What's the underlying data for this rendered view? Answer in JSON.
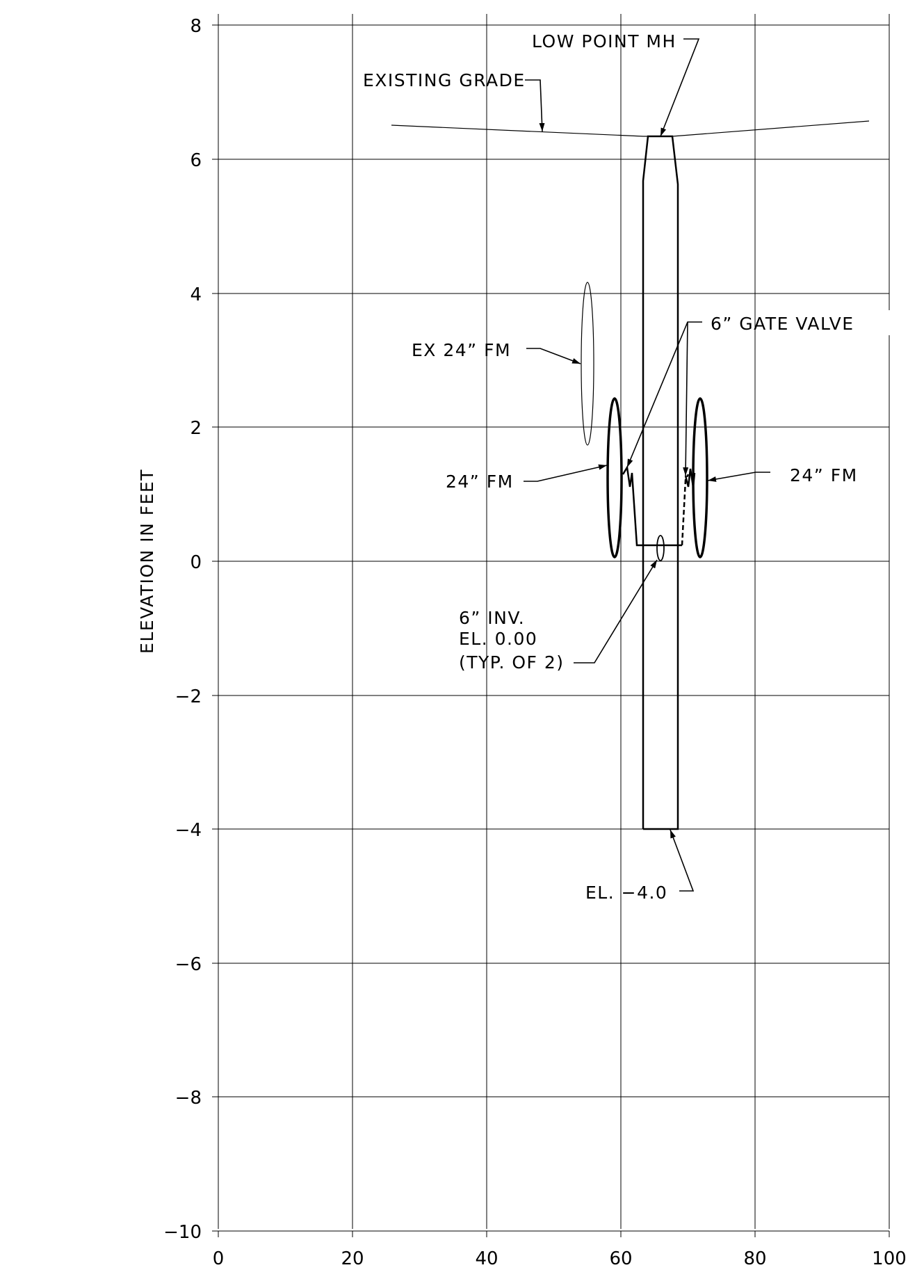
{
  "drawing": {
    "ylabel": "ELEVATION IN FEET",
    "x_ticks": [
      "0",
      "20",
      "40",
      "60",
      "80",
      "100"
    ],
    "y_ticks": [
      "8",
      "6",
      "4",
      "2",
      "0",
      "−2",
      "−4",
      "−6",
      "−8",
      "−10"
    ],
    "x_range": [
      0,
      100
    ],
    "y_range": [
      -10,
      8
    ],
    "grid": true,
    "labels": {
      "low_point_mh": "LOW POINT MH",
      "existing_grade": "EXISTING GRADE",
      "gate_valve": "6” GATE VALVE",
      "ex_fm": "EX 24” FM",
      "fm_left": "24” FM",
      "fm_right": "24” FM",
      "inv_line1": "6” INV.",
      "inv_line2": "EL. 0.00",
      "inv_line3": "(TYP. OF 2)",
      "el_bottom": "EL. −4.0"
    }
  }
}
